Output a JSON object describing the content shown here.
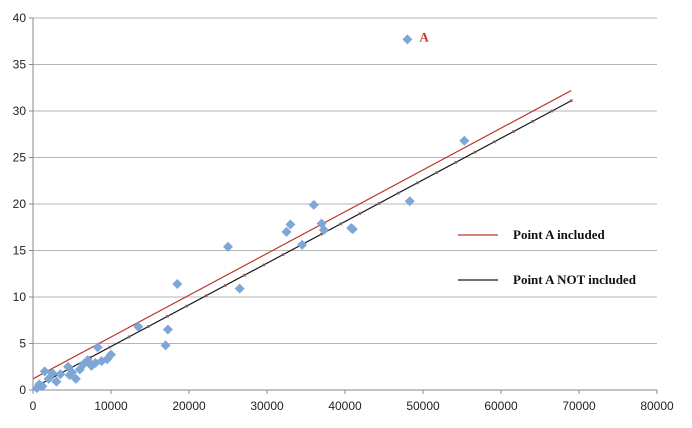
{
  "chart_data": {
    "type": "scatter",
    "title": "",
    "xlabel": "",
    "ylabel": "",
    "xlim": [
      0,
      80000
    ],
    "ylim": [
      0,
      40
    ],
    "x_ticks": [
      0,
      10000,
      20000,
      30000,
      40000,
      50000,
      60000,
      70000,
      80000
    ],
    "y_ticks": [
      0,
      5,
      10,
      15,
      20,
      25,
      30,
      35,
      40
    ],
    "grid": "horizontal",
    "legend_placement": "right",
    "colors": {
      "points": "#7ea6d6",
      "point_a_included": "#c0392b",
      "point_a_not_included": "#1a1a1a",
      "grid": "#b4b4b4",
      "axis": "#888888",
      "annotation": "#c0392b"
    },
    "points": [
      {
        "x": 500,
        "y": 0.2
      },
      {
        "x": 800,
        "y": 0.6
      },
      {
        "x": 1200,
        "y": 0.4
      },
      {
        "x": 1500,
        "y": 2.0
      },
      {
        "x": 2000,
        "y": 1.2
      },
      {
        "x": 2500,
        "y": 1.8
      },
      {
        "x": 3000,
        "y": 0.9
      },
      {
        "x": 3500,
        "y": 1.7
      },
      {
        "x": 4500,
        "y": 2.5
      },
      {
        "x": 4700,
        "y": 1.6
      },
      {
        "x": 5000,
        "y": 1.9
      },
      {
        "x": 5500,
        "y": 1.2
      },
      {
        "x": 6000,
        "y": 2.2
      },
      {
        "x": 6500,
        "y": 2.8
      },
      {
        "x": 7000,
        "y": 3.2
      },
      {
        "x": 7500,
        "y": 2.6
      },
      {
        "x": 8000,
        "y": 2.9
      },
      {
        "x": 8300,
        "y": 4.6
      },
      {
        "x": 8800,
        "y": 3.1
      },
      {
        "x": 9500,
        "y": 3.3
      },
      {
        "x": 10000,
        "y": 3.8
      },
      {
        "x": 13500,
        "y": 6.8
      },
      {
        "x": 17000,
        "y": 4.8
      },
      {
        "x": 17300,
        "y": 6.5
      },
      {
        "x": 18500,
        "y": 11.4
      },
      {
        "x": 25000,
        "y": 15.4
      },
      {
        "x": 26500,
        "y": 10.9
      },
      {
        "x": 32500,
        "y": 17.0
      },
      {
        "x": 33000,
        "y": 17.8
      },
      {
        "x": 34500,
        "y": 15.6
      },
      {
        "x": 36000,
        "y": 19.9
      },
      {
        "x": 37000,
        "y": 17.9
      },
      {
        "x": 37300,
        "y": 17.2
      },
      {
        "x": 40800,
        "y": 17.4
      },
      {
        "x": 41000,
        "y": 17.3
      },
      {
        "x": 48300,
        "y": 20.3
      },
      {
        "x": 55300,
        "y": 26.8
      },
      {
        "x": 48000,
        "y": 37.7
      }
    ],
    "series": [
      {
        "name": "Point A included",
        "x": [
          0,
          69000
        ],
        "y": [
          1.2,
          32.2
        ]
      },
      {
        "name": "Point A NOT included",
        "x": [
          0,
          69000
        ],
        "y": [
          0.2,
          31.1
        ]
      }
    ],
    "annotations": [
      {
        "text": "A",
        "x": 48000,
        "y": 37.7
      }
    ]
  }
}
